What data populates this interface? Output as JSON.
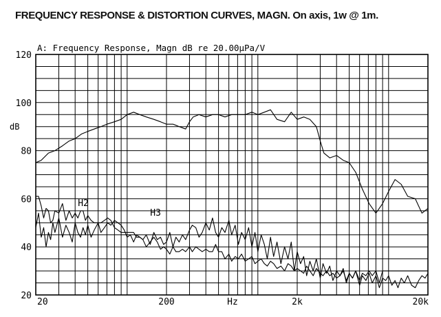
{
  "page": {
    "title": "FREQUENCY RESPONSE & DISTORTION CURVES, MAGN. On axis, 1w @ 1m."
  },
  "chart_data": {
    "type": "line",
    "title": "A: Frequency Response, Magn dB re 20.00µPa/V",
    "xlabel": "Hz",
    "ylabel": "dB",
    "xscale": "log",
    "xlim": [
      20,
      20000
    ],
    "ylim": [
      20,
      120
    ],
    "grid": true,
    "y_ticks": [
      "20",
      "40",
      "60",
      "80",
      "100",
      "120"
    ],
    "x_ticks": [
      {
        "value": 20,
        "label": "20"
      },
      {
        "value": 200,
        "label": "200"
      },
      {
        "value": 2000,
        "label": "2k"
      },
      {
        "value": 20000,
        "label": "20k"
      }
    ],
    "annotations": [
      {
        "text": "H2",
        "x": 42,
        "y": 57
      },
      {
        "text": "H3",
        "x": 150,
        "y": 53
      }
    ],
    "series": [
      {
        "name": "Frequency Response",
        "x": [
          20,
          22,
          25,
          28,
          32,
          36,
          40,
          45,
          50,
          56,
          63,
          70,
          80,
          90,
          100,
          112,
          125,
          140,
          160,
          180,
          200,
          225,
          250,
          280,
          300,
          320,
          355,
          400,
          450,
          500,
          560,
          630,
          710,
          800,
          900,
          1000,
          1120,
          1250,
          1400,
          1600,
          1800,
          2000,
          2250,
          2500,
          2800,
          3000,
          3200,
          3550,
          4000,
          4500,
          5000,
          5600,
          6300,
          7100,
          8000,
          9000,
          10000,
          11200,
          12500,
          14000,
          16000,
          18000,
          20000
        ],
        "values": [
          75,
          76,
          79,
          80,
          82,
          84,
          85,
          87,
          88,
          89,
          90,
          91,
          92,
          93,
          95,
          96,
          95,
          94,
          93,
          92,
          91,
          91,
          90,
          89,
          92,
          94,
          95,
          94,
          95,
          95,
          94,
          95,
          95,
          95,
          96,
          95,
          96,
          97,
          93,
          92,
          96,
          93,
          94,
          93,
          90,
          84,
          79,
          77,
          78,
          76,
          75,
          71,
          64,
          58,
          54,
          58,
          63,
          68,
          66,
          61,
          60,
          54,
          56
        ]
      },
      {
        "name": "H2",
        "x": [
          20,
          21,
          22,
          23,
          24,
          25,
          26,
          27,
          28,
          30,
          32,
          34,
          36,
          38,
          40,
          42,
          44,
          46,
          48,
          50,
          53,
          56,
          60,
          63,
          67,
          71,
          75,
          80,
          85,
          90,
          95,
          100,
          106,
          112,
          118,
          125,
          132,
          140,
          150,
          160,
          170,
          180,
          190,
          200,
          212,
          224,
          236,
          250,
          265,
          280,
          300,
          315,
          335,
          355,
          375,
          400,
          425,
          450,
          475,
          500,
          530,
          560,
          600,
          630,
          670,
          710,
          750,
          800,
          850,
          900,
          950,
          1000,
          1060,
          1120,
          1180,
          1250,
          1320,
          1400,
          1500,
          1600,
          1700,
          1800,
          1900,
          2000,
          2120,
          2240,
          2360,
          2500,
          2650,
          2800,
          3000,
          3150,
          3350,
          3550,
          3750,
          4000,
          4250,
          4500,
          4750,
          5000,
          5300,
          5600,
          6000,
          6300,
          6700,
          7100,
          7500,
          8000,
          8500,
          9000,
          9500,
          10000,
          10600,
          11200,
          11800,
          12500,
          13200,
          14000,
          15000,
          16000,
          17000,
          18000,
          19000,
          20000
        ],
        "values": [
          61,
          61,
          57,
          52,
          56,
          55,
          50,
          51,
          55,
          54,
          58,
          51,
          55,
          52,
          54,
          52,
          55,
          55,
          51,
          53,
          51,
          50,
          50,
          50,
          51,
          52,
          51,
          48,
          47,
          46,
          46,
          46,
          46,
          46,
          44,
          44,
          43,
          40,
          42,
          44,
          42,
          39,
          40,
          39,
          37,
          40,
          38,
          38,
          39,
          38,
          40,
          38,
          40,
          39,
          38,
          39,
          38,
          38,
          41,
          38,
          38,
          35,
          37,
          34,
          36,
          35,
          37,
          34,
          35,
          36,
          33,
          34,
          35,
          33,
          32,
          34,
          33,
          31,
          32,
          30,
          33,
          32,
          30,
          31,
          30,
          29,
          32,
          30,
          28,
          31,
          29,
          28,
          30,
          28,
          29,
          27,
          28,
          30,
          26,
          29,
          27,
          30,
          26,
          29,
          28,
          30,
          28,
          30,
          25,
          30,
          30,
          30,
          30,
          30,
          30,
          30,
          30,
          30,
          30,
          30,
          30,
          30,
          30,
          30
        ]
      },
      {
        "name": "H3",
        "x": [
          20,
          21,
          22,
          23,
          24,
          25,
          26,
          27,
          28,
          30,
          32,
          34,
          36,
          38,
          40,
          42,
          44,
          46,
          48,
          50,
          53,
          56,
          60,
          63,
          67,
          71,
          75,
          80,
          85,
          90,
          95,
          100,
          106,
          112,
          118,
          125,
          132,
          140,
          150,
          160,
          170,
          180,
          190,
          200,
          212,
          224,
          236,
          250,
          265,
          280,
          300,
          315,
          335,
          355,
          375,
          400,
          425,
          450,
          475,
          500,
          530,
          560,
          600,
          630,
          670,
          710,
          750,
          800,
          850,
          900,
          950,
          1000,
          1060,
          1120,
          1180,
          1250,
          1320,
          1400,
          1500,
          1600,
          1700,
          1800,
          1900,
          2000,
          2120,
          2240,
          2360,
          2500,
          2650,
          2800,
          3000,
          3150,
          3350,
          3550,
          3750,
          4000,
          4250,
          4500,
          4750,
          5000,
          5300,
          5600,
          6000,
          6300,
          6700,
          7100,
          7500,
          8000,
          8500,
          9000,
          9500,
          10000,
          10600,
          11200,
          11800,
          12500,
          13200,
          14000,
          15000,
          16000,
          17000,
          18000,
          19000,
          20000
        ],
        "values": [
          48,
          54,
          44,
          48,
          40,
          46,
          43,
          50,
          46,
          52,
          44,
          49,
          46,
          42,
          50,
          46,
          44,
          48,
          45,
          49,
          44,
          47,
          50,
          46,
          48,
          50,
          49,
          51,
          50,
          49,
          47,
          44,
          45,
          42,
          45,
          44,
          43,
          45,
          41,
          46,
          43,
          44,
          41,
          42,
          46,
          40,
          44,
          42,
          45,
          43,
          47,
          49,
          48,
          44,
          46,
          50,
          47,
          52,
          46,
          44,
          48,
          46,
          51,
          45,
          49,
          41,
          46,
          43,
          48,
          40,
          46,
          38,
          45,
          41,
          35,
          44,
          36,
          42,
          33,
          40,
          35,
          42,
          30,
          38,
          33,
          36,
          28,
          34,
          30,
          35,
          27,
          33,
          29,
          32,
          26,
          30,
          28,
          31,
          25,
          29,
          27,
          30,
          24,
          28,
          26,
          29,
          25,
          28,
          23,
          27,
          26,
          28,
          24,
          26,
          23,
          27,
          25,
          28,
          24,
          23,
          26,
          28,
          27,
          29
        ]
      }
    ]
  }
}
